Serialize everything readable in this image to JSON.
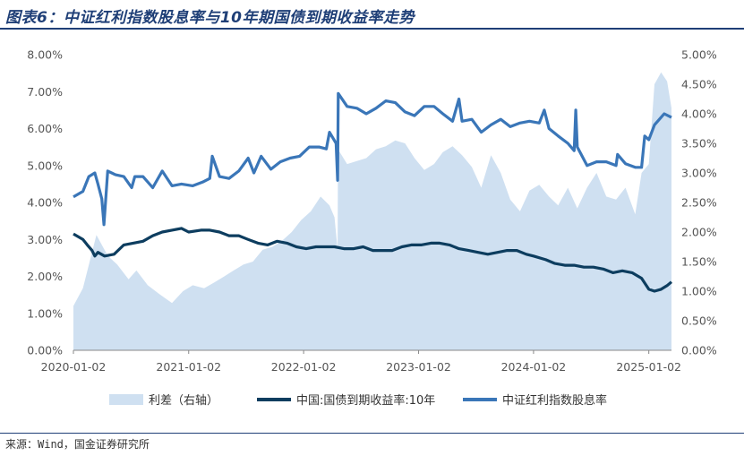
{
  "header": {
    "title": "图表6：中证红利指数股息率与10年期国债到期收益率走势"
  },
  "footer": {
    "source": "来源：Wind，国金证券研究所"
  },
  "chart_data": {
    "type": "line",
    "x_type": "date",
    "xlim": [
      "2020-01-02",
      "2025-03-15"
    ],
    "x_ticks": [
      "2020-01-02",
      "2021-01-02",
      "2022-01-02",
      "2023-01-02",
      "2024-01-02",
      "2025-01-02"
    ],
    "y_left": {
      "ticks": [
        "0.00%",
        "1.00%",
        "2.00%",
        "3.00%",
        "4.00%",
        "5.00%",
        "6.00%",
        "7.00%",
        "8.00%"
      ],
      "lim": [
        0,
        8
      ]
    },
    "y_right": {
      "ticks": [
        "0.00%",
        "0.50%",
        "1.00%",
        "1.50%",
        "2.00%",
        "2.50%",
        "3.00%",
        "3.50%",
        "4.00%",
        "4.50%",
        "5.00%"
      ],
      "lim": [
        0,
        5
      ]
    },
    "grid": false,
    "legend_position": "bottom",
    "series": [
      {
        "name": "利差（右轴）",
        "type": "area",
        "axis": "right",
        "color": "#cfe0f1",
        "x": [
          "2020-01-02",
          "2020-02-01",
          "2020-03-15",
          "2020-04-20",
          "2020-05-20",
          "2020-06-25",
          "2020-07-20",
          "2020-08-25",
          "2020-10-01",
          "2020-11-10",
          "2020-12-15",
          "2021-01-15",
          "2021-02-20",
          "2021-03-25",
          "2021-04-25",
          "2021-05-25",
          "2021-06-25",
          "2021-07-25",
          "2021-08-25",
          "2021-09-25",
          "2021-10-25",
          "2021-11-25",
          "2021-12-25",
          "2022-01-25",
          "2022-02-25",
          "2022-03-25",
          "2022-04-10",
          "2022-04-20",
          "2022-04-21",
          "2022-05-20",
          "2022-06-20",
          "2022-07-20",
          "2022-08-20",
          "2022-09-20",
          "2022-10-20",
          "2022-11-20",
          "2022-12-20",
          "2023-01-20",
          "2023-02-20",
          "2023-03-20",
          "2023-04-20",
          "2023-05-20",
          "2023-06-20",
          "2023-07-20",
          "2023-08-20",
          "2023-09-20",
          "2023-10-20",
          "2023-11-20",
          "2023-12-20",
          "2024-01-20",
          "2024-02-20",
          "2024-03-20",
          "2024-04-20",
          "2024-05-20",
          "2024-06-20",
          "2024-07-20",
          "2024-08-20",
          "2024-09-20",
          "2024-10-20",
          "2024-11-20",
          "2024-12-10",
          "2025-01-02",
          "2025-01-20",
          "2025-02-10",
          "2025-03-01",
          "2025-03-15"
        ],
        "values": [
          0.75,
          1.05,
          1.95,
          1.6,
          1.45,
          1.2,
          1.35,
          1.1,
          0.95,
          0.8,
          1.0,
          1.1,
          1.05,
          1.15,
          1.25,
          1.35,
          1.45,
          1.5,
          1.7,
          1.75,
          1.85,
          2.0,
          2.2,
          2.35,
          2.6,
          2.45,
          2.25,
          1.7,
          3.4,
          3.15,
          3.2,
          3.25,
          3.4,
          3.45,
          3.55,
          3.5,
          3.25,
          3.05,
          3.15,
          3.35,
          3.45,
          3.3,
          3.1,
          2.75,
          3.3,
          3.0,
          2.55,
          2.35,
          2.7,
          2.8,
          2.6,
          2.45,
          2.75,
          2.4,
          2.75,
          3.0,
          2.6,
          2.55,
          2.75,
          2.3,
          3.0,
          3.15,
          4.5,
          4.7,
          4.55,
          4.1
        ]
      },
      {
        "name": "中国:国债到期收益率:10年",
        "type": "line",
        "axis": "left",
        "color": "#0d3d5f",
        "x": [
          "2020-01-02",
          "2020-02-01",
          "2020-02-15",
          "2020-03-01",
          "2020-03-10",
          "2020-03-20",
          "2020-04-10",
          "2020-05-10",
          "2020-06-10",
          "2020-07-10",
          "2020-08-10",
          "2020-09-10",
          "2020-10-10",
          "2020-11-10",
          "2020-12-10",
          "2021-01-02",
          "2021-02-10",
          "2021-03-10",
          "2021-04-10",
          "2021-05-10",
          "2021-06-10",
          "2021-07-10",
          "2021-08-10",
          "2021-09-10",
          "2021-10-10",
          "2021-11-10",
          "2021-12-10",
          "2022-01-10",
          "2022-02-10",
          "2022-03-10",
          "2022-04-10",
          "2022-05-10",
          "2022-06-10",
          "2022-07-10",
          "2022-08-10",
          "2022-09-10",
          "2022-10-10",
          "2022-11-10",
          "2022-12-10",
          "2023-01-10",
          "2023-02-10",
          "2023-03-10",
          "2023-04-10",
          "2023-05-10",
          "2023-06-10",
          "2023-07-10",
          "2023-08-10",
          "2023-09-10",
          "2023-10-10",
          "2023-11-10",
          "2023-12-10",
          "2024-01-02",
          "2024-02-10",
          "2024-03-10",
          "2024-04-10",
          "2024-05-10",
          "2024-06-10",
          "2024-07-10",
          "2024-08-10",
          "2024-09-10",
          "2024-10-10",
          "2024-11-10",
          "2024-12-10",
          "2025-01-02",
          "2025-01-20",
          "2025-02-10",
          "2025-03-01",
          "2025-03-15"
        ],
        "values": [
          3.15,
          3.0,
          2.85,
          2.7,
          2.55,
          2.65,
          2.55,
          2.6,
          2.85,
          2.9,
          2.95,
          3.1,
          3.2,
          3.25,
          3.3,
          3.2,
          3.25,
          3.25,
          3.2,
          3.1,
          3.1,
          3.0,
          2.9,
          2.85,
          2.95,
          2.9,
          2.8,
          2.75,
          2.8,
          2.8,
          2.8,
          2.75,
          2.75,
          2.8,
          2.7,
          2.7,
          2.7,
          2.8,
          2.85,
          2.85,
          2.9,
          2.9,
          2.85,
          2.75,
          2.7,
          2.65,
          2.6,
          2.65,
          2.7,
          2.7,
          2.6,
          2.55,
          2.45,
          2.35,
          2.3,
          2.3,
          2.25,
          2.25,
          2.2,
          2.1,
          2.15,
          2.1,
          1.95,
          1.65,
          1.6,
          1.65,
          1.75,
          1.85
        ]
      },
      {
        "name": "中证红利指数股息率",
        "type": "line",
        "axis": "left",
        "color": "#3a76b8",
        "x": [
          "2020-01-02",
          "2020-02-01",
          "2020-02-20",
          "2020-03-10",
          "2020-03-20",
          "2020-04-01",
          "2020-04-08",
          "2020-04-20",
          "2020-05-15",
          "2020-06-10",
          "2020-07-05",
          "2020-07-15",
          "2020-08-10",
          "2020-09-10",
          "2020-10-10",
          "2020-11-10",
          "2020-12-10",
          "2021-01-15",
          "2021-02-15",
          "2021-03-10",
          "2021-03-18",
          "2021-04-10",
          "2021-05-10",
          "2021-06-10",
          "2021-07-10",
          "2021-07-28",
          "2021-08-20",
          "2021-09-20",
          "2021-10-20",
          "2021-11-20",
          "2021-12-20",
          "2022-01-20",
          "2022-02-20",
          "2022-03-15",
          "2022-03-25",
          "2022-04-15",
          "2022-04-20",
          "2022-04-22",
          "2022-05-20",
          "2022-06-20",
          "2022-07-20",
          "2022-08-20",
          "2022-09-20",
          "2022-10-20",
          "2022-11-20",
          "2022-12-20",
          "2023-01-20",
          "2023-02-20",
          "2023-03-20",
          "2023-04-20",
          "2023-05-10",
          "2023-05-20",
          "2023-06-20",
          "2023-07-20",
          "2023-08-20",
          "2023-09-20",
          "2023-10-20",
          "2023-11-20",
          "2023-12-20",
          "2024-01-20",
          "2024-02-05",
          "2024-02-20",
          "2024-03-20",
          "2024-04-20",
          "2024-05-10",
          "2024-05-15",
          "2024-05-20",
          "2024-06-20",
          "2024-07-20",
          "2024-08-20",
          "2024-09-20",
          "2024-09-25",
          "2024-10-20",
          "2024-11-20",
          "2024-12-10",
          "2024-12-20",
          "2025-01-02",
          "2025-01-20",
          "2025-02-20",
          "2025-03-15"
        ],
        "values": [
          4.15,
          4.3,
          4.7,
          4.8,
          4.5,
          4.1,
          3.4,
          4.85,
          4.75,
          4.7,
          4.4,
          4.7,
          4.7,
          4.4,
          4.85,
          4.45,
          4.5,
          4.45,
          4.55,
          4.65,
          5.25,
          4.7,
          4.65,
          4.85,
          5.2,
          4.8,
          5.25,
          4.9,
          5.1,
          5.2,
          5.25,
          5.5,
          5.5,
          5.45,
          5.9,
          5.6,
          4.6,
          6.95,
          6.6,
          6.55,
          6.4,
          6.55,
          6.75,
          6.7,
          6.45,
          6.35,
          6.6,
          6.6,
          6.4,
          6.2,
          6.8,
          6.2,
          6.25,
          5.9,
          6.1,
          6.25,
          6.05,
          6.15,
          6.2,
          6.15,
          6.5,
          6.0,
          5.8,
          5.6,
          5.4,
          6.5,
          5.5,
          5.0,
          5.1,
          5.1,
          5.0,
          5.3,
          5.05,
          4.95,
          4.95,
          5.8,
          5.7,
          6.1,
          6.4,
          6.3
        ]
      }
    ]
  }
}
